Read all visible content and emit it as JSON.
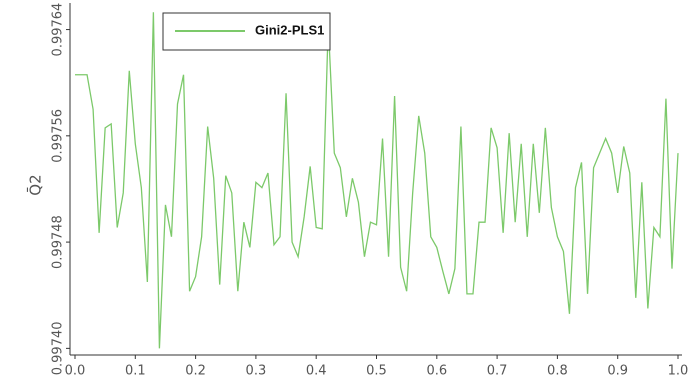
{
  "chart_data": {
    "type": "line",
    "y_label": "Q̄2",
    "x": [
      0,
      0.01,
      0.02,
      0.03,
      0.04,
      0.05,
      0.06,
      0.07,
      0.08,
      0.09,
      0.1,
      0.11,
      0.12,
      0.13,
      0.14,
      0.15,
      0.16,
      0.17,
      0.18,
      0.19,
      0.2,
      0.21,
      0.22,
      0.23,
      0.24,
      0.25,
      0.26,
      0.27,
      0.28,
      0.29,
      0.3,
      0.31,
      0.32,
      0.33,
      0.34,
      0.35,
      0.36,
      0.37,
      0.38,
      0.39,
      0.4,
      0.41,
      0.42,
      0.43,
      0.44,
      0.45,
      0.46,
      0.47,
      0.48,
      0.49,
      0.5,
      0.51,
      0.52,
      0.53,
      0.54,
      0.55,
      0.56,
      0.57,
      0.58,
      0.59,
      0.6,
      0.61,
      0.62,
      0.63,
      0.64,
      0.65,
      0.66,
      0.67,
      0.68,
      0.69,
      0.7,
      0.71,
      0.72,
      0.73,
      0.74,
      0.75,
      0.76,
      0.77,
      0.78,
      0.79,
      0.8,
      0.81,
      0.82,
      0.83,
      0.84,
      0.85,
      0.86,
      0.87,
      0.88,
      0.89,
      0.9,
      0.91,
      0.92,
      0.93,
      0.94,
      0.95,
      0.96,
      0.97,
      0.98,
      0.99,
      1
    ],
    "series": [
      {
        "name": "Gini2-PLS1",
        "color": "#7cc96a",
        "values": [
          0.997606,
          0.997606,
          0.997606,
          0.99758,
          0.997487,
          0.997566,
          0.997569,
          0.997491,
          0.997517,
          0.997609,
          0.997554,
          0.997521,
          0.99745,
          0.997653,
          0.9974,
          0.997508,
          0.997484,
          0.997584,
          0.997606,
          0.997443,
          0.997454,
          0.997484,
          0.997567,
          0.997528,
          0.997448,
          0.99753,
          0.997517,
          0.997443,
          0.997495,
          0.997476,
          0.997525,
          0.997521,
          0.997532,
          0.997478,
          0.997484,
          0.997592,
          0.99748,
          0.997469,
          0.997499,
          0.997537,
          0.997491,
          0.99749,
          0.997644,
          0.997547,
          0.997536,
          0.997499,
          0.997528,
          0.99751,
          0.997469,
          0.997495,
          0.997493,
          0.997558,
          0.997469,
          0.99759,
          0.997461,
          0.997443,
          0.997517,
          0.997575,
          0.997547,
          0.997484,
          0.997476,
          0.997458,
          0.997441,
          0.99746,
          0.997567,
          0.997441,
          0.997441,
          0.997495,
          0.997495,
          0.997566,
          0.997551,
          0.997487,
          0.997562,
          0.997495,
          0.997554,
          0.997484,
          0.997554,
          0.997502,
          0.997566,
          0.997506,
          0.997484,
          0.997473,
          0.997426,
          0.997521,
          0.99754,
          0.997441,
          0.997536,
          0.997547,
          0.997558,
          0.997547,
          0.997517,
          0.997552,
          0.997532,
          0.997438,
          0.997525,
          0.99743,
          0.997491,
          0.997484,
          0.997588,
          0.99746,
          0.997547
        ]
      }
    ],
    "xlim": [
      0,
      1
    ],
    "ylim": [
      0.997395,
      0.99766
    ],
    "xticks": [
      {
        "value": 0,
        "label": "0.0"
      },
      0.1,
      0.2,
      0.3,
      0.4,
      0.5,
      0.6,
      0.7,
      0.8,
      0.9,
      {
        "value": 1,
        "label": "1.0"
      }
    ],
    "yticks": [
      {
        "value": 0.9974,
        "label": "0.99740"
      },
      0.99748,
      0.99756,
      0.99764
    ],
    "legend": "upper-left"
  }
}
